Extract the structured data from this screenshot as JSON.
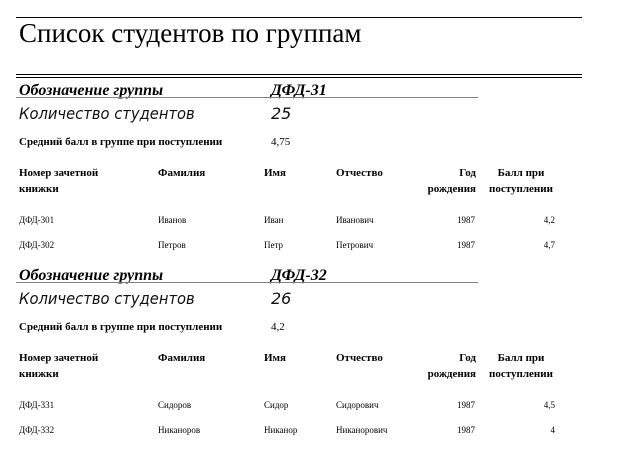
{
  "report": {
    "title": "Список студентов по группам",
    "labels": {
      "group": "Обозначение группы",
      "count": "Количество студентов",
      "avg": "Средний балл в группе при поступлении"
    },
    "columns": [
      "Номер зачетной книжки",
      "Фамилия",
      "Имя",
      "Отчество",
      "Год рождения",
      "Балл при поступлении"
    ],
    "groups": [
      {
        "code": "ДФД-31",
        "count": "25",
        "avg": "4,75",
        "rows": [
          [
            "ДФД-301",
            "Иванов",
            "Иван",
            "Иванович",
            "1987",
            "4,2"
          ],
          [
            "ДФД-302",
            "Петров",
            "Петр",
            "Петрович",
            "1987",
            "4,7"
          ]
        ]
      },
      {
        "code": "ДФД-32",
        "count": "26",
        "avg": "4,2",
        "rows": [
          [
            "ДФД-331",
            "Сидоров",
            "Сидор",
            "Сидорович",
            "1987",
            "4,5"
          ],
          [
            "ДФД-332",
            "Никаноров",
            "Никанор",
            "Никанорович",
            "1987",
            "4"
          ]
        ]
      }
    ]
  }
}
